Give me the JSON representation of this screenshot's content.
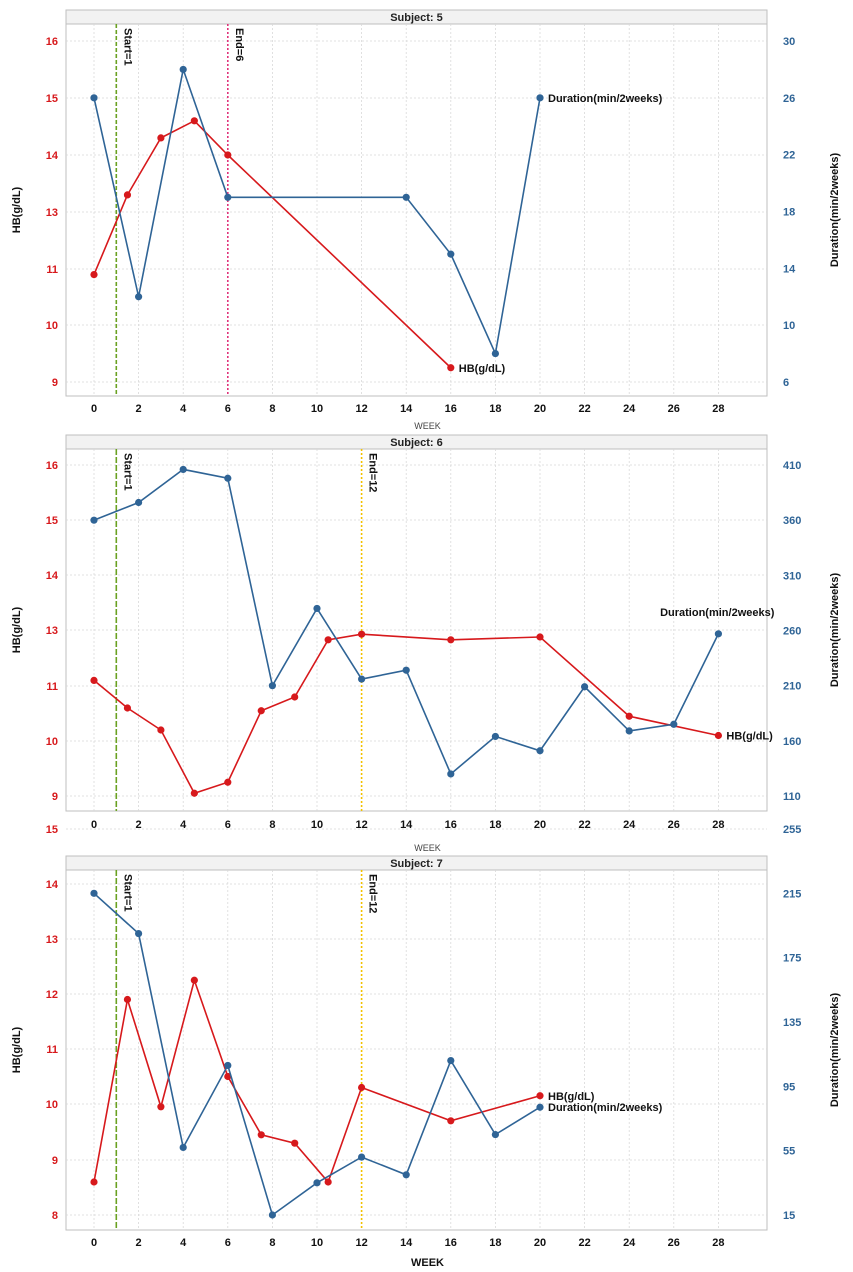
{
  "colors": {
    "hb": "#d7191c",
    "duration": "#2f6496",
    "start_line": "#6aa121",
    "grid": "#d9d9d9",
    "panel_strip": "#f2f2f2"
  },
  "chart_data": [
    {
      "type": "line",
      "title": "Subject: 5",
      "xlabel": "WEEK",
      "ylabel_left": "HB(g/dL)",
      "ylabel_right": "Duration(min/2weeks)",
      "x_ticks": [
        0,
        2,
        4,
        6,
        8,
        10,
        12,
        14,
        16,
        18,
        20,
        22,
        24,
        26,
        28
      ],
      "y_left_ticks": [
        9,
        10,
        11,
        13,
        14,
        15,
        16
      ],
      "y_right_ticks": [
        6,
        10,
        14,
        18,
        22,
        26,
        30
      ],
      "y_right_range": [
        6,
        30
      ],
      "series": [
        {
          "name": "HB(g/dL)",
          "axis": "left",
          "x": [
            0,
            1.5,
            3,
            4.5,
            6,
            16
          ],
          "y": [
            10.9,
            13.3,
            14.3,
            14.6,
            14.0,
            9.25
          ]
        },
        {
          "name": "Duration(min/2weeks)",
          "axis": "right",
          "x": [
            0,
            2,
            4,
            6,
            14,
            16,
            18,
            20
          ],
          "y": [
            26,
            12,
            28,
            19,
            19,
            15,
            8,
            26
          ]
        }
      ],
      "vlines": [
        {
          "x": 1,
          "label": "Start=1",
          "color": "#6aa121",
          "dash": "4,2"
        },
        {
          "x": 6,
          "label": "End=6",
          "color": "#e0337a",
          "dash": "2,2"
        }
      ]
    },
    {
      "type": "line",
      "title": "Subject: 6",
      "xlabel": "WEEK",
      "ylabel_left": "HB(g/dL)",
      "ylabel_right": "Duration(min/2weeks)",
      "x_ticks": [
        0,
        2,
        4,
        6,
        8,
        10,
        12,
        14,
        16,
        18,
        20,
        22,
        24,
        26,
        28
      ],
      "y_left_ticks": [
        9,
        10,
        11,
        13,
        14,
        15,
        16
      ],
      "y_right_ticks": [
        110,
        160,
        210,
        260,
        310,
        360,
        410
      ],
      "y_right_range": [
        110,
        410
      ],
      "series": [
        {
          "name": "HB(g/dL)",
          "axis": "left",
          "x": [
            0,
            1.5,
            3,
            4.5,
            6,
            7.5,
            9,
            10.5,
            12,
            16,
            20,
            24,
            28
          ],
          "y": [
            11.2,
            10.6,
            10.2,
            9.05,
            9.25,
            10.55,
            10.8,
            12.65,
            12.85,
            12.65,
            12.75,
            10.45,
            10.1
          ]
        },
        {
          "name": "Duration(min/2weeks)",
          "axis": "right",
          "x": [
            0,
            2,
            4,
            6,
            8,
            10,
            12,
            14,
            16,
            18,
            20,
            22,
            24,
            26,
            28
          ],
          "y": [
            360,
            376,
            406,
            398,
            210,
            280,
            216,
            224,
            130,
            164,
            151,
            209,
            169,
            175,
            257
          ]
        }
      ],
      "vlines": [
        {
          "x": 1,
          "label": "Start=1",
          "color": "#6aa121",
          "dash": "6,2"
        },
        {
          "x": 12,
          "label": "End=12",
          "color": "#f2c200",
          "dash": "2,2"
        }
      ]
    },
    {
      "type": "line",
      "title": "Subject: 7",
      "xlabel": "WEEK",
      "ylabel_left": "HB(g/dL)",
      "ylabel_right": "Duration(min/2weeks)",
      "x_ticks": [
        0,
        2,
        4,
        6,
        8,
        10,
        12,
        14,
        16,
        18,
        20,
        22,
        24,
        26,
        28
      ],
      "y_left_ticks": [
        8,
        9,
        10,
        11,
        12,
        13,
        14,
        15
      ],
      "y_right_ticks": [
        15,
        55,
        95,
        135,
        175,
        215,
        255
      ],
      "y_right_range": [
        15,
        255
      ],
      "series": [
        {
          "name": "HB(g/dL)",
          "axis": "left",
          "x": [
            0,
            1.5,
            3,
            4.5,
            6,
            7.5,
            9,
            10.5,
            12,
            16,
            20
          ],
          "y": [
            8.6,
            11.9,
            9.95,
            12.25,
            10.5,
            9.45,
            9.3,
            8.6,
            10.3,
            9.7,
            10.15
          ]
        },
        {
          "name": "Duration(min/2weeks)",
          "axis": "right",
          "x": [
            0,
            2,
            4,
            6,
            8,
            10,
            12,
            14,
            16,
            18,
            20
          ],
          "y": [
            215,
            190,
            57,
            108,
            15,
            35,
            51,
            40,
            111,
            65,
            82
          ]
        }
      ],
      "vlines": [
        {
          "x": 1,
          "label": "Start=1",
          "color": "#6aa121",
          "dash": "6,2"
        },
        {
          "x": 12,
          "label": "End=12",
          "color": "#f2c200",
          "dash": "2,2"
        }
      ]
    }
  ]
}
